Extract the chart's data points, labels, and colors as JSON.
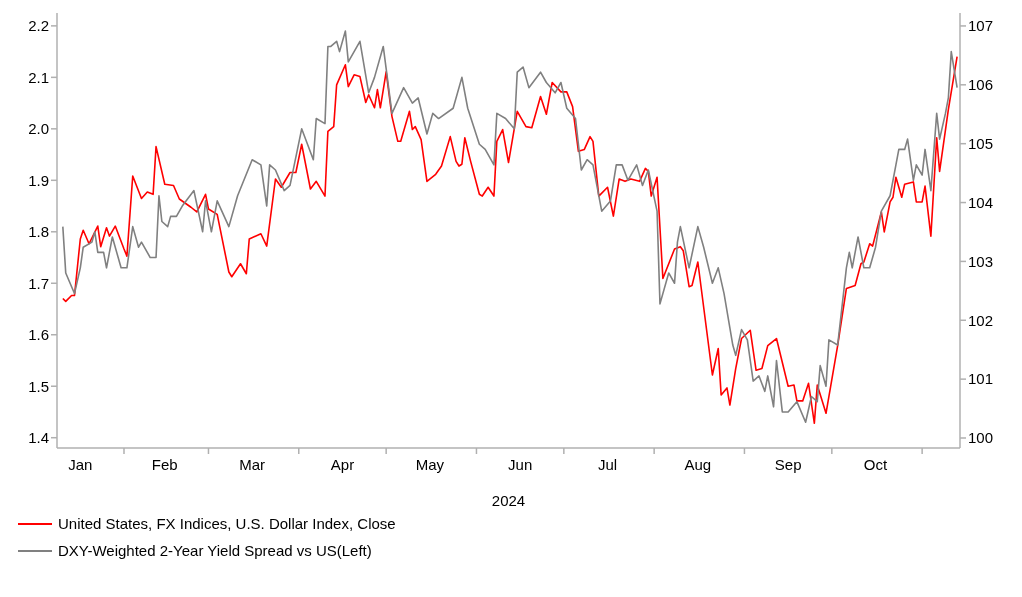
{
  "chart_data": {
    "type": "line",
    "xlabel": "2024",
    "xlim": [
      "2024-01-09",
      "2024-11-14"
    ],
    "xticks": [
      {
        "value": "2024-01-17",
        "label": "Jan"
      },
      {
        "value": "2024-02-01",
        "label": null
      },
      {
        "value": "2024-02-15",
        "label": "Feb"
      },
      {
        "value": "2024-03-01",
        "label": null
      },
      {
        "value": "2024-03-16",
        "label": "Mar"
      },
      {
        "value": "2024-04-01",
        "label": null
      },
      {
        "value": "2024-04-16",
        "label": "Apr"
      },
      {
        "value": "2024-05-01",
        "label": null
      },
      {
        "value": "2024-05-16",
        "label": "May"
      },
      {
        "value": "2024-06-01",
        "label": null
      },
      {
        "value": "2024-06-16",
        "label": "Jun"
      },
      {
        "value": "2024-07-01",
        "label": null
      },
      {
        "value": "2024-07-16",
        "label": "Jul"
      },
      {
        "value": "2024-08-01",
        "label": null
      },
      {
        "value": "2024-08-16",
        "label": "Aug"
      },
      {
        "value": "2024-09-01",
        "label": null
      },
      {
        "value": "2024-09-16",
        "label": "Sep"
      },
      {
        "value": "2024-10-01",
        "label": null
      },
      {
        "value": "2024-10-16",
        "label": "Oct"
      },
      {
        "value": "2024-11-01",
        "label": null
      }
    ],
    "ylim": [
      1.38,
      2.225
    ],
    "yticks": [
      1.4,
      1.5,
      1.6,
      1.7,
      1.8,
      1.9,
      {
        "value": 2,
        "label": "2.0"
      },
      2.1,
      2.2
    ],
    "y2lim": [
      99.83,
      107.22
    ],
    "y2ticks": [
      100,
      101,
      102,
      103,
      104,
      105,
      106,
      107
    ],
    "legend": "bottom",
    "marker": "none",
    "line_style": "solid",
    "series": [
      {
        "name": "United States, FX Indices, U.S. Dollar Index, Close",
        "color": "#ff0000",
        "axis": "y2",
        "x": [
          "2024-01-11",
          "2024-01-12",
          "2024-01-14",
          "2024-01-15",
          "2024-01-17",
          "2024-01-18",
          "2024-01-20",
          "2024-01-23",
          "2024-01-24",
          "2024-01-26",
          "2024-01-27",
          "2024-01-29",
          "2024-02-01",
          "2024-02-02",
          "2024-02-04",
          "2024-02-07",
          "2024-02-09",
          "2024-02-11",
          "2024-02-12",
          "2024-02-15",
          "2024-02-18",
          "2024-02-20",
          "2024-02-24",
          "2024-02-26",
          "2024-02-29",
          "2024-03-01",
          "2024-03-04",
          "2024-03-08",
          "2024-03-09",
          "2024-03-12",
          "2024-03-14",
          "2024-03-15",
          "2024-03-19",
          "2024-03-21",
          "2024-03-24",
          "2024-03-26",
          "2024-03-29",
          "2024-03-31",
          "2024-04-02",
          "2024-04-05",
          "2024-04-07",
          "2024-04-10",
          "2024-04-11",
          "2024-04-13",
          "2024-04-14",
          "2024-04-17",
          "2024-04-18",
          "2024-04-20",
          "2024-04-22",
          "2024-04-24",
          "2024-04-25",
          "2024-04-27",
          "2024-04-28",
          "2024-04-29",
          "2024-05-01",
          "2024-05-03",
          "2024-05-05",
          "2024-05-06",
          "2024-05-09",
          "2024-05-10",
          "2024-05-11",
          "2024-05-13",
          "2024-05-15",
          "2024-05-18",
          "2024-05-20",
          "2024-05-23",
          "2024-05-25",
          "2024-05-26",
          "2024-05-27",
          "2024-05-28",
          "2024-05-30",
          "2024-06-02",
          "2024-06-03",
          "2024-06-05",
          "2024-06-07",
          "2024-06-08",
          "2024-06-10",
          "2024-06-12",
          "2024-06-15",
          "2024-06-18",
          "2024-06-20",
          "2024-06-23",
          "2024-06-25",
          "2024-06-27",
          "2024-06-30",
          "2024-07-02",
          "2024-07-04",
          "2024-07-06",
          "2024-07-08",
          "2024-07-10",
          "2024-07-11",
          "2024-07-13",
          "2024-07-16",
          "2024-07-18",
          "2024-07-20",
          "2024-07-22",
          "2024-07-24",
          "2024-07-27",
          "2024-07-29",
          "2024-07-30",
          "2024-07-31",
          "2024-08-02",
          "2024-08-04",
          "2024-08-08",
          "2024-08-10",
          "2024-08-11",
          "2024-08-13",
          "2024-08-14",
          "2024-08-16",
          "2024-08-21",
          "2024-08-23",
          "2024-08-24",
          "2024-08-26",
          "2024-08-27",
          "2024-08-29",
          "2024-08-31",
          "2024-09-03",
          "2024-09-05",
          "2024-09-07",
          "2024-09-09",
          "2024-09-12",
          "2024-09-16",
          "2024-09-18",
          "2024-09-19",
          "2024-09-21",
          "2024-09-23",
          "2024-09-25",
          "2024-09-26",
          "2024-09-29",
          "2024-10-03",
          "2024-10-06",
          "2024-10-09",
          "2024-10-11",
          "2024-10-12",
          "2024-10-14",
          "2024-10-15",
          "2024-10-18",
          "2024-10-19",
          "2024-10-21",
          "2024-10-22",
          "2024-10-23",
          "2024-10-25",
          "2024-10-26",
          "2024-10-29",
          "2024-10-30",
          "2024-11-01",
          "2024-11-02",
          "2024-11-04",
          "2024-11-06",
          "2024-11-07",
          "2024-11-10",
          "2024-11-13"
        ],
        "values": [
          102.37,
          102.32,
          102.42,
          102.42,
          103.38,
          103.53,
          103.3,
          103.6,
          103.25,
          103.57,
          103.43,
          103.6,
          103.21,
          103.09,
          104.45,
          104.07,
          104.18,
          104.14,
          104.95,
          104.31,
          104.29,
          104.06,
          103.92,
          103.84,
          104.14,
          103.89,
          103.8,
          102.82,
          102.74,
          102.96,
          102.79,
          103.38,
          103.47,
          103.26,
          104.4,
          104.26,
          104.51,
          104.51,
          104.99,
          104.23,
          104.36,
          104.11,
          105.21,
          105.29,
          106.0,
          106.34,
          105.97,
          106.17,
          106.14,
          105.7,
          105.83,
          105.61,
          105.92,
          105.61,
          106.22,
          105.46,
          105.04,
          105.04,
          105.55,
          105.24,
          105.29,
          105.07,
          104.36,
          104.48,
          104.62,
          105.12,
          104.7,
          104.62,
          104.65,
          105.1,
          104.7,
          104.14,
          104.11,
          104.26,
          104.11,
          105.04,
          105.24,
          104.68,
          105.55,
          105.29,
          105.27,
          105.8,
          105.5,
          106.04,
          105.88,
          105.88,
          105.63,
          104.87,
          104.9,
          105.12,
          105.04,
          104.11,
          104.26,
          103.77,
          104.4,
          104.36,
          104.4,
          104.36,
          104.58,
          104.53,
          104.11,
          104.43,
          102.71,
          103.21,
          103.25,
          103.18,
          102.57,
          102.59,
          102.99,
          101.07,
          101.52,
          100.73,
          100.85,
          100.56,
          101.18,
          101.69,
          101.83,
          101.15,
          101.18,
          101.57,
          101.69,
          100.88,
          100.9,
          100.63,
          100.63,
          100.93,
          100.25,
          100.9,
          100.42,
          101.57,
          102.54,
          102.59,
          102.96,
          102.99,
          103.3,
          103.26,
          103.84,
          103.5,
          104.01,
          104.09,
          104.43,
          104.09,
          104.31,
          104.35,
          104.01,
          104.01,
          104.28,
          103.43,
          105.1,
          104.53,
          105.58,
          106.48
        ]
      },
      {
        "name": "DXY-Weighted 2-Year Yield Spread vs US(Left)",
        "color": "#808080",
        "x": [
          "2024-01-11",
          "2024-01-12",
          "2024-01-15",
          "2024-01-17",
          "2024-01-18",
          "2024-01-21",
          "2024-01-22",
          "2024-01-23",
          "2024-01-25",
          "2024-01-26",
          "2024-01-28",
          "2024-01-31",
          "2024-02-02",
          "2024-02-04",
          "2024-02-06",
          "2024-02-07",
          "2024-02-10",
          "2024-02-12",
          "2024-02-13",
          "2024-02-14",
          "2024-02-16",
          "2024-02-17",
          "2024-02-19",
          "2024-02-21",
          "2024-02-25",
          "2024-02-28",
          "2024-02-29",
          "2024-03-02",
          "2024-03-04",
          "2024-03-08",
          "2024-03-11",
          "2024-03-16",
          "2024-03-19",
          "2024-03-21",
          "2024-03-22",
          "2024-03-24",
          "2024-03-27",
          "2024-03-29",
          "2024-04-02",
          "2024-04-06",
          "2024-04-07",
          "2024-04-10",
          "2024-04-11",
          "2024-04-12",
          "2024-04-14",
          "2024-04-15",
          "2024-04-17",
          "2024-04-18",
          "2024-04-20",
          "2024-04-22",
          "2024-04-25",
          "2024-04-27",
          "2024-04-30",
          "2024-05-03",
          "2024-05-07",
          "2024-05-10",
          "2024-05-12",
          "2024-05-15",
          "2024-05-17",
          "2024-05-19",
          "2024-05-24",
          "2024-05-27",
          "2024-05-29",
          "2024-06-02",
          "2024-06-04",
          "2024-06-07",
          "2024-06-08",
          "2024-06-11",
          "2024-06-14",
          "2024-06-15",
          "2024-06-17",
          "2024-06-19",
          "2024-06-23",
          "2024-06-25",
          "2024-06-28",
          "2024-06-30",
          "2024-07-02",
          "2024-07-05",
          "2024-07-07",
          "2024-07-09",
          "2024-07-11",
          "2024-07-14",
          "2024-07-17",
          "2024-07-19",
          "2024-07-21",
          "2024-07-23",
          "2024-07-26",
          "2024-07-28",
          "2024-07-30",
          "2024-08-02",
          "2024-08-03",
          "2024-08-06",
          "2024-08-08",
          "2024-08-09",
          "2024-08-10",
          "2024-08-13",
          "2024-08-16",
          "2024-08-18",
          "2024-08-21",
          "2024-08-23",
          "2024-08-25",
          "2024-08-28",
          "2024-08-29",
          "2024-08-31",
          "2024-09-02",
          "2024-09-04",
          "2024-09-06",
          "2024-09-08",
          "2024-09-09",
          "2024-09-11",
          "2024-09-12",
          "2024-09-14",
          "2024-09-16",
          "2024-09-19",
          "2024-09-22",
          "2024-09-24",
          "2024-09-26",
          "2024-09-27",
          "2024-09-29",
          "2024-09-30",
          "2024-10-03",
          "2024-10-06",
          "2024-10-07",
          "2024-10-08",
          "2024-10-10",
          "2024-10-12",
          "2024-10-14",
          "2024-10-16",
          "2024-10-18",
          "2024-10-21",
          "2024-10-23",
          "2024-10-24",
          "2024-10-26",
          "2024-10-27",
          "2024-10-29",
          "2024-10-30",
          "2024-11-01",
          "2024-11-02",
          "2024-11-04",
          "2024-11-06",
          "2024-11-07",
          "2024-11-09",
          "2024-11-10",
          "2024-11-11",
          "2024-11-13"
        ],
        "values": [
          1.81,
          1.72,
          1.68,
          1.73,
          1.77,
          1.78,
          1.8,
          1.76,
          1.76,
          1.73,
          1.79,
          1.73,
          1.73,
          1.81,
          1.77,
          1.78,
          1.75,
          1.75,
          1.87,
          1.82,
          1.81,
          1.83,
          1.83,
          1.85,
          1.88,
          1.8,
          1.86,
          1.8,
          1.86,
          1.81,
          1.87,
          1.94,
          1.93,
          1.85,
          1.93,
          1.92,
          1.88,
          1.89,
          2.0,
          1.94,
          2.02,
          2.01,
          2.16,
          2.16,
          2.17,
          2.15,
          2.19,
          2.13,
          2.15,
          2.17,
          2.07,
          2.1,
          2.16,
          2.03,
          2.08,
          2.05,
          2.06,
          1.99,
          2.03,
          2.02,
          2.04,
          2.1,
          2.04,
          1.97,
          1.96,
          1.93,
          2.03,
          2.02,
          2.0,
          2.11,
          2.12,
          2.08,
          2.11,
          2.09,
          2.07,
          2.09,
          2.04,
          2.02,
          1.92,
          1.94,
          1.93,
          1.84,
          1.86,
          1.93,
          1.93,
          1.9,
          1.93,
          1.89,
          1.92,
          1.84,
          1.66,
          1.72,
          1.7,
          1.78,
          1.81,
          1.73,
          1.81,
          1.77,
          1.7,
          1.73,
          1.68,
          1.58,
          1.56,
          1.61,
          1.59,
          1.51,
          1.52,
          1.49,
          1.52,
          1.46,
          1.55,
          1.45,
          1.45,
          1.47,
          1.43,
          1.48,
          1.47,
          1.54,
          1.5,
          1.59,
          1.58,
          1.73,
          1.76,
          1.73,
          1.79,
          1.73,
          1.73,
          1.77,
          1.84,
          1.87,
          1.93,
          1.96,
          1.96,
          1.98,
          1.9,
          1.93,
          1.91,
          1.96,
          1.88,
          2.03,
          1.98,
          2.03,
          2.06,
          2.15,
          2.08
        ]
      }
    ]
  }
}
